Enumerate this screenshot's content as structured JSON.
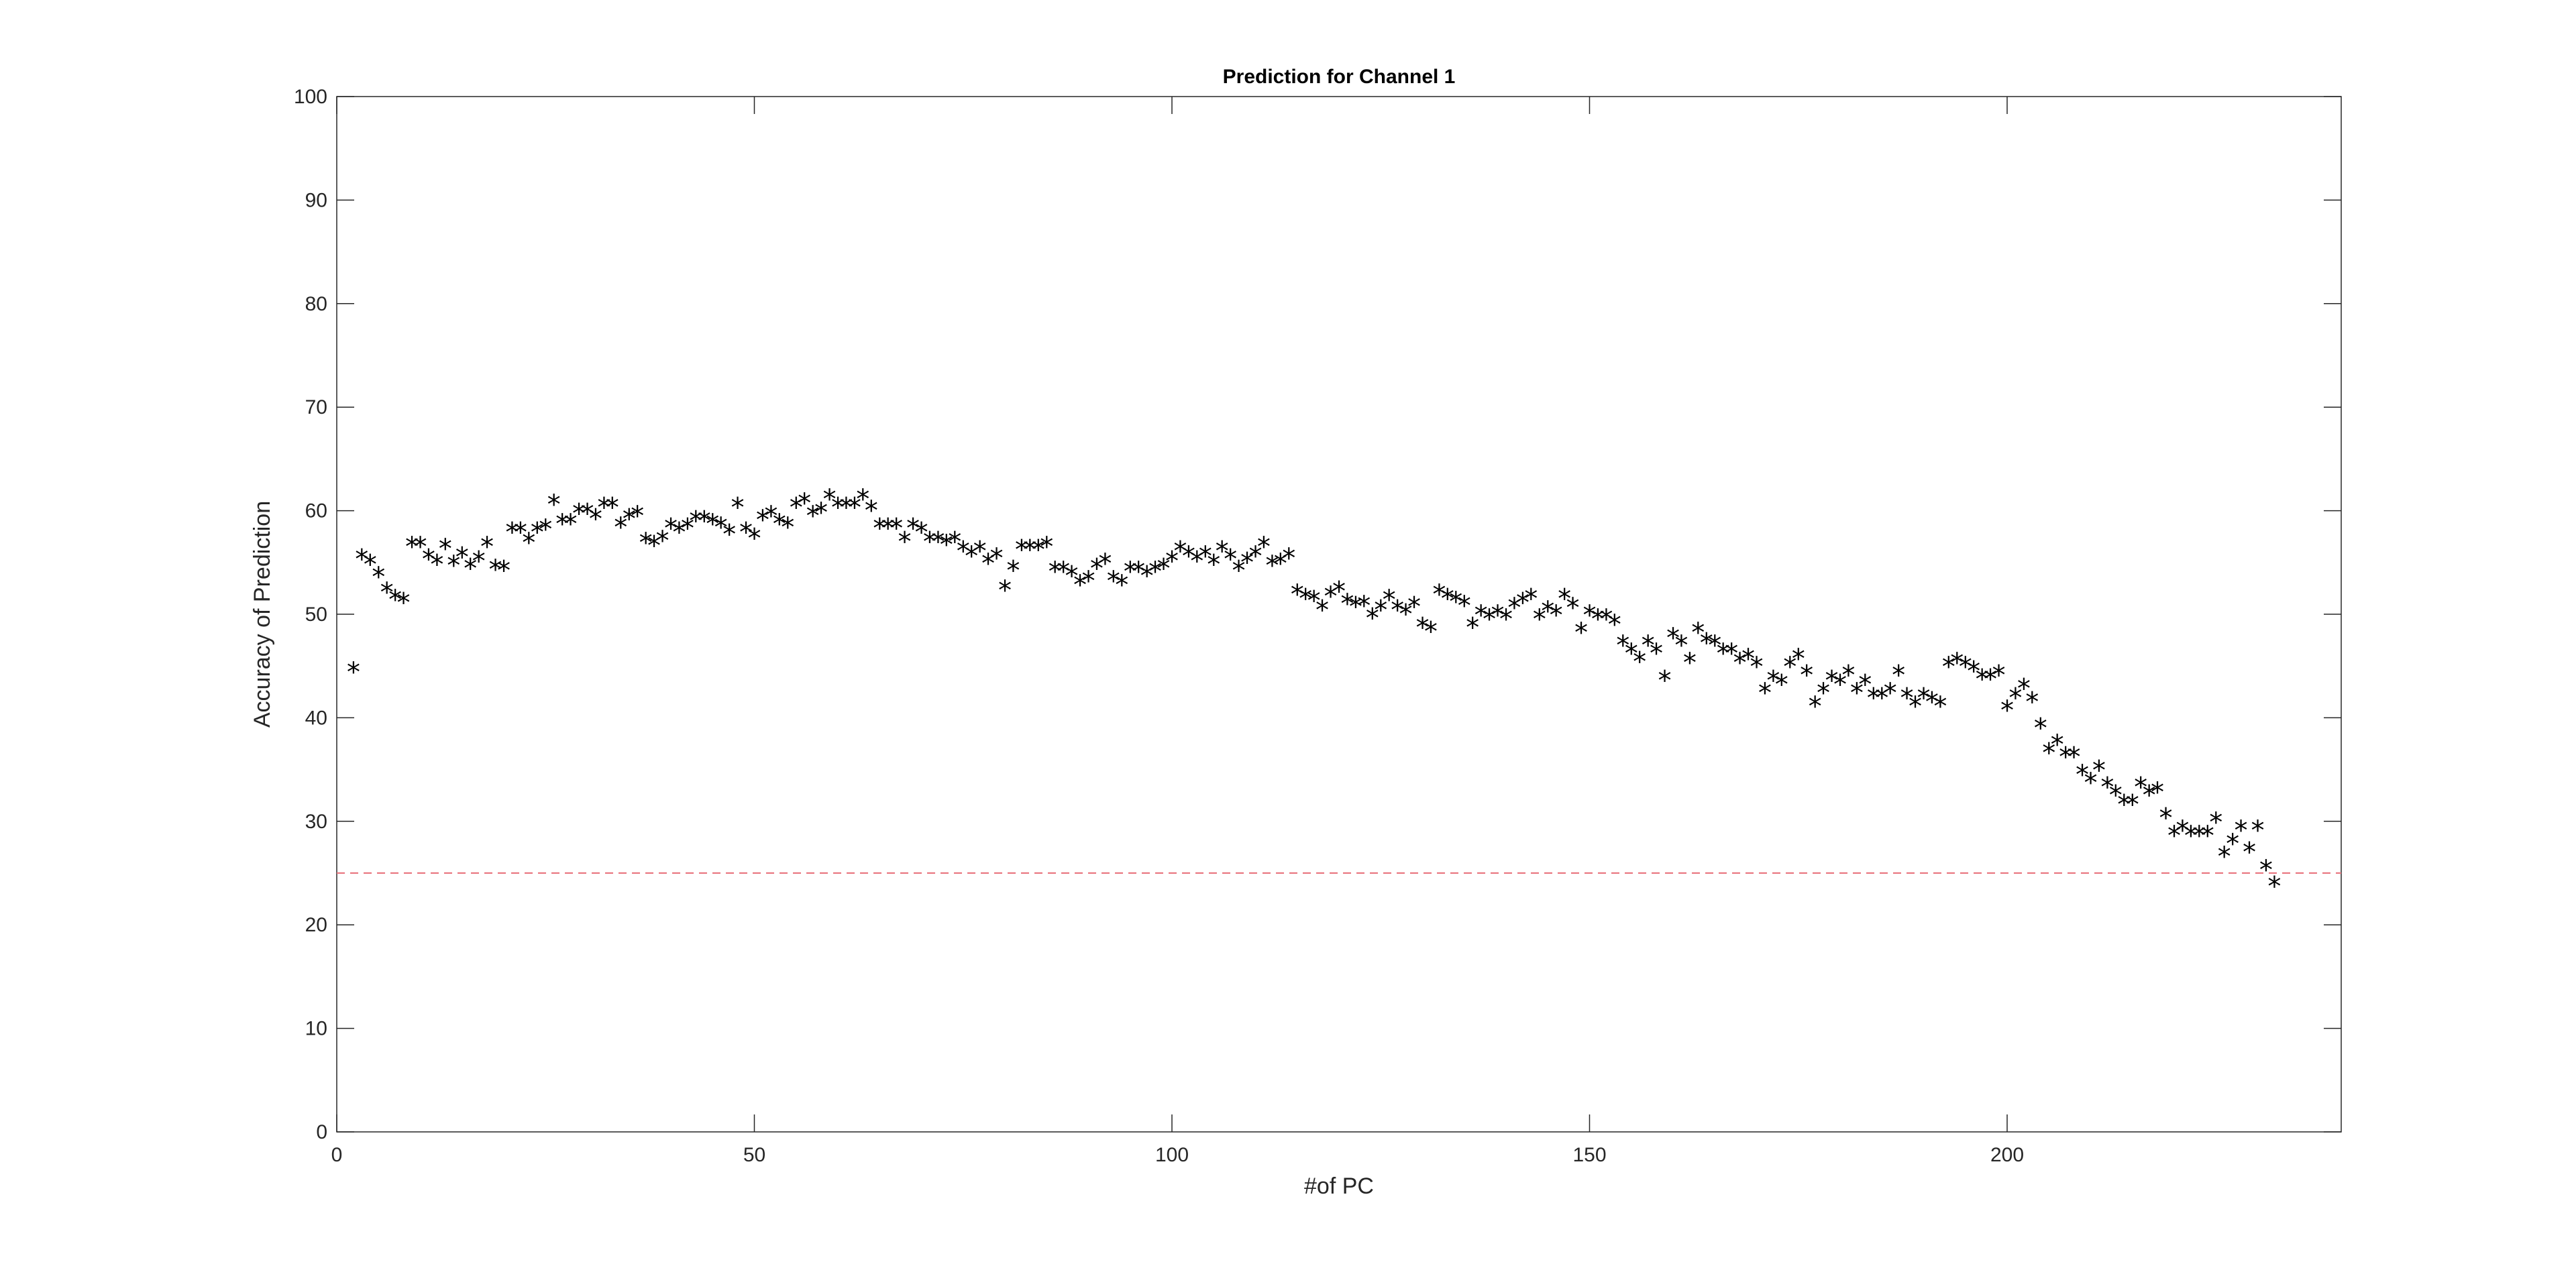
{
  "chart_data": {
    "type": "scatter",
    "title": "Prediction for Channel 1",
    "xlabel": "#of PC",
    "ylabel": "Accuracy of Prediction",
    "xlim": [
      0,
      240
    ],
    "ylim": [
      0,
      100
    ],
    "xticks": [
      0,
      50,
      100,
      150,
      200
    ],
    "yticks": [
      0,
      10,
      20,
      30,
      40,
      50,
      60,
      70,
      80,
      90,
      100
    ],
    "grid": false,
    "marker": "*",
    "reference_line": {
      "y": 25,
      "style": "dashed",
      "color": "#e8707a"
    },
    "colors": {
      "marker": "#000000",
      "axes": "#262626",
      "reference": "#e8707a"
    },
    "points": [
      [
        2,
        44.5
      ],
      [
        3,
        55.4
      ],
      [
        4,
        54.9
      ],
      [
        5,
        53.7
      ],
      [
        6,
        52.2
      ],
      [
        7,
        51.5
      ],
      [
        8,
        51.2
      ],
      [
        9,
        56.6
      ],
      [
        10,
        56.6
      ],
      [
        11,
        55.4
      ],
      [
        12,
        54.9
      ],
      [
        13,
        56.4
      ],
      [
        14,
        54.8
      ],
      [
        15,
        55.6
      ],
      [
        16,
        54.5
      ],
      [
        17,
        55.2
      ],
      [
        18,
        56.6
      ],
      [
        19,
        54.4
      ],
      [
        20,
        54.3
      ],
      [
        21,
        58.0
      ],
      [
        22,
        58.0
      ],
      [
        23,
        57.0
      ],
      [
        24,
        58.0
      ],
      [
        25,
        58.3
      ],
      [
        26,
        60.7
      ],
      [
        27,
        58.8
      ],
      [
        28,
        58.8
      ],
      [
        29,
        59.8
      ],
      [
        30,
        59.8
      ],
      [
        31,
        59.3
      ],
      [
        32,
        60.4
      ],
      [
        33,
        60.4
      ],
      [
        34,
        58.5
      ],
      [
        35,
        59.3
      ],
      [
        36,
        59.6
      ],
      [
        37,
        57.0
      ],
      [
        38,
        56.7
      ],
      [
        39,
        57.2
      ],
      [
        40,
        58.4
      ],
      [
        41,
        58.0
      ],
      [
        42,
        58.4
      ],
      [
        43,
        59.1
      ],
      [
        44,
        59.1
      ],
      [
        45,
        58.8
      ],
      [
        46,
        58.5
      ],
      [
        47,
        57.8
      ],
      [
        48,
        60.4
      ],
      [
        49,
        58.0
      ],
      [
        50,
        57.4
      ],
      [
        51,
        59.2
      ],
      [
        52,
        59.6
      ],
      [
        53,
        58.8
      ],
      [
        54,
        58.5
      ],
      [
        55,
        60.4
      ],
      [
        56,
        60.8
      ],
      [
        57,
        59.6
      ],
      [
        58,
        59.9
      ],
      [
        59,
        61.2
      ],
      [
        60,
        60.4
      ],
      [
        61,
        60.4
      ],
      [
        62,
        60.4
      ],
      [
        63,
        61.2
      ],
      [
        64,
        60.1
      ],
      [
        65,
        58.4
      ],
      [
        66,
        58.4
      ],
      [
        67,
        58.4
      ],
      [
        68,
        57.1
      ],
      [
        69,
        58.4
      ],
      [
        70,
        58.0
      ],
      [
        71,
        57.1
      ],
      [
        72,
        57.1
      ],
      [
        73,
        56.8
      ],
      [
        74,
        57.1
      ],
      [
        75,
        56.2
      ],
      [
        76,
        55.7
      ],
      [
        77,
        56.2
      ],
      [
        78,
        55.0
      ],
      [
        79,
        55.5
      ],
      [
        80,
        52.4
      ],
      [
        81,
        54.3
      ],
      [
        82,
        56.3
      ],
      [
        83,
        56.3
      ],
      [
        84,
        56.3
      ],
      [
        85,
        56.6
      ],
      [
        86,
        54.2
      ],
      [
        87,
        54.2
      ],
      [
        88,
        53.8
      ],
      [
        89,
        52.9
      ],
      [
        90,
        53.3
      ],
      [
        91,
        54.5
      ],
      [
        92,
        55.0
      ],
      [
        93,
        53.3
      ],
      [
        94,
        52.9
      ],
      [
        95,
        54.2
      ],
      [
        96,
        54.2
      ],
      [
        97,
        53.8
      ],
      [
        98,
        54.2
      ],
      [
        99,
        54.5
      ],
      [
        100,
        55.2
      ],
      [
        101,
        56.2
      ],
      [
        102,
        55.7
      ],
      [
        103,
        55.2
      ],
      [
        104,
        55.7
      ],
      [
        105,
        54.9
      ],
      [
        106,
        56.2
      ],
      [
        107,
        55.4
      ],
      [
        108,
        54.3
      ],
      [
        109,
        55.1
      ],
      [
        110,
        55.7
      ],
      [
        111,
        56.6
      ],
      [
        112,
        54.8
      ],
      [
        113,
        55.0
      ],
      [
        114,
        55.5
      ],
      [
        115,
        52.0
      ],
      [
        116,
        51.6
      ],
      [
        117,
        51.4
      ],
      [
        118,
        50.5
      ],
      [
        119,
        51.8
      ],
      [
        120,
        52.3
      ],
      [
        121,
        51.1
      ],
      [
        122,
        50.8
      ],
      [
        123,
        50.9
      ],
      [
        124,
        49.7
      ],
      [
        125,
        50.5
      ],
      [
        126,
        51.5
      ],
      [
        127,
        50.5
      ],
      [
        128,
        50.1
      ],
      [
        129,
        50.8
      ],
      [
        130,
        48.8
      ],
      [
        131,
        48.4
      ],
      [
        132,
        52.0
      ],
      [
        133,
        51.6
      ],
      [
        134,
        51.3
      ],
      [
        135,
        50.9
      ],
      [
        136,
        48.8
      ],
      [
        137,
        50.0
      ],
      [
        138,
        49.6
      ],
      [
        139,
        50.0
      ],
      [
        140,
        49.6
      ],
      [
        141,
        50.7
      ],
      [
        142,
        51.2
      ],
      [
        143,
        51.6
      ],
      [
        144,
        49.6
      ],
      [
        145,
        50.4
      ],
      [
        146,
        50.0
      ],
      [
        147,
        51.6
      ],
      [
        148,
        50.7
      ],
      [
        149,
        48.3
      ],
      [
        150,
        50.0
      ],
      [
        151,
        49.6
      ],
      [
        152,
        49.6
      ],
      [
        153,
        49.1
      ],
      [
        154,
        47.1
      ],
      [
        155,
        46.3
      ],
      [
        156,
        45.5
      ],
      [
        157,
        47.1
      ],
      [
        158,
        46.3
      ],
      [
        159,
        43.7
      ],
      [
        160,
        47.8
      ],
      [
        161,
        47.1
      ],
      [
        162,
        45.4
      ],
      [
        163,
        48.3
      ],
      [
        164,
        47.3
      ],
      [
        165,
        47.1
      ],
      [
        166,
        46.3
      ],
      [
        167,
        46.3
      ],
      [
        168,
        45.4
      ],
      [
        169,
        45.8
      ],
      [
        170,
        45.0
      ],
      [
        171,
        42.5
      ],
      [
        172,
        43.7
      ],
      [
        173,
        43.3
      ],
      [
        174,
        45.0
      ],
      [
        175,
        45.8
      ],
      [
        176,
        44.2
      ],
      [
        177,
        41.2
      ],
      [
        178,
        42.5
      ],
      [
        179,
        43.7
      ],
      [
        180,
        43.3
      ],
      [
        181,
        44.2
      ],
      [
        182,
        42.5
      ],
      [
        183,
        43.3
      ],
      [
        184,
        42.0
      ],
      [
        185,
        42.0
      ],
      [
        186,
        42.5
      ],
      [
        187,
        44.2
      ],
      [
        188,
        42.0
      ],
      [
        189,
        41.2
      ],
      [
        190,
        42.0
      ],
      [
        191,
        41.6
      ],
      [
        192,
        41.2
      ],
      [
        193,
        45.0
      ],
      [
        194,
        45.4
      ],
      [
        195,
        45.0
      ],
      [
        196,
        44.6
      ],
      [
        197,
        43.8
      ],
      [
        198,
        43.8
      ],
      [
        199,
        44.2
      ],
      [
        200,
        40.8
      ],
      [
        201,
        42.0
      ],
      [
        202,
        42.9
      ],
      [
        203,
        41.6
      ],
      [
        204,
        39.1
      ],
      [
        205,
        36.7
      ],
      [
        206,
        37.5
      ],
      [
        207,
        36.3
      ],
      [
        208,
        36.3
      ],
      [
        209,
        34.6
      ],
      [
        210,
        33.8
      ],
      [
        211,
        35.0
      ],
      [
        212,
        33.4
      ],
      [
        213,
        32.6
      ],
      [
        214,
        31.7
      ],
      [
        215,
        31.7
      ],
      [
        216,
        33.4
      ],
      [
        217,
        32.6
      ],
      [
        218,
        32.9
      ],
      [
        219,
        30.4
      ],
      [
        220,
        28.7
      ],
      [
        221,
        29.2
      ],
      [
        222,
        28.7
      ],
      [
        223,
        28.7
      ],
      [
        224,
        28.7
      ],
      [
        225,
        30.0
      ],
      [
        226,
        26.7
      ],
      [
        227,
        27.9
      ],
      [
        228,
        29.2
      ],
      [
        229,
        27.1
      ],
      [
        230,
        29.2
      ],
      [
        231,
        25.4
      ],
      [
        232,
        23.8
      ]
    ]
  }
}
